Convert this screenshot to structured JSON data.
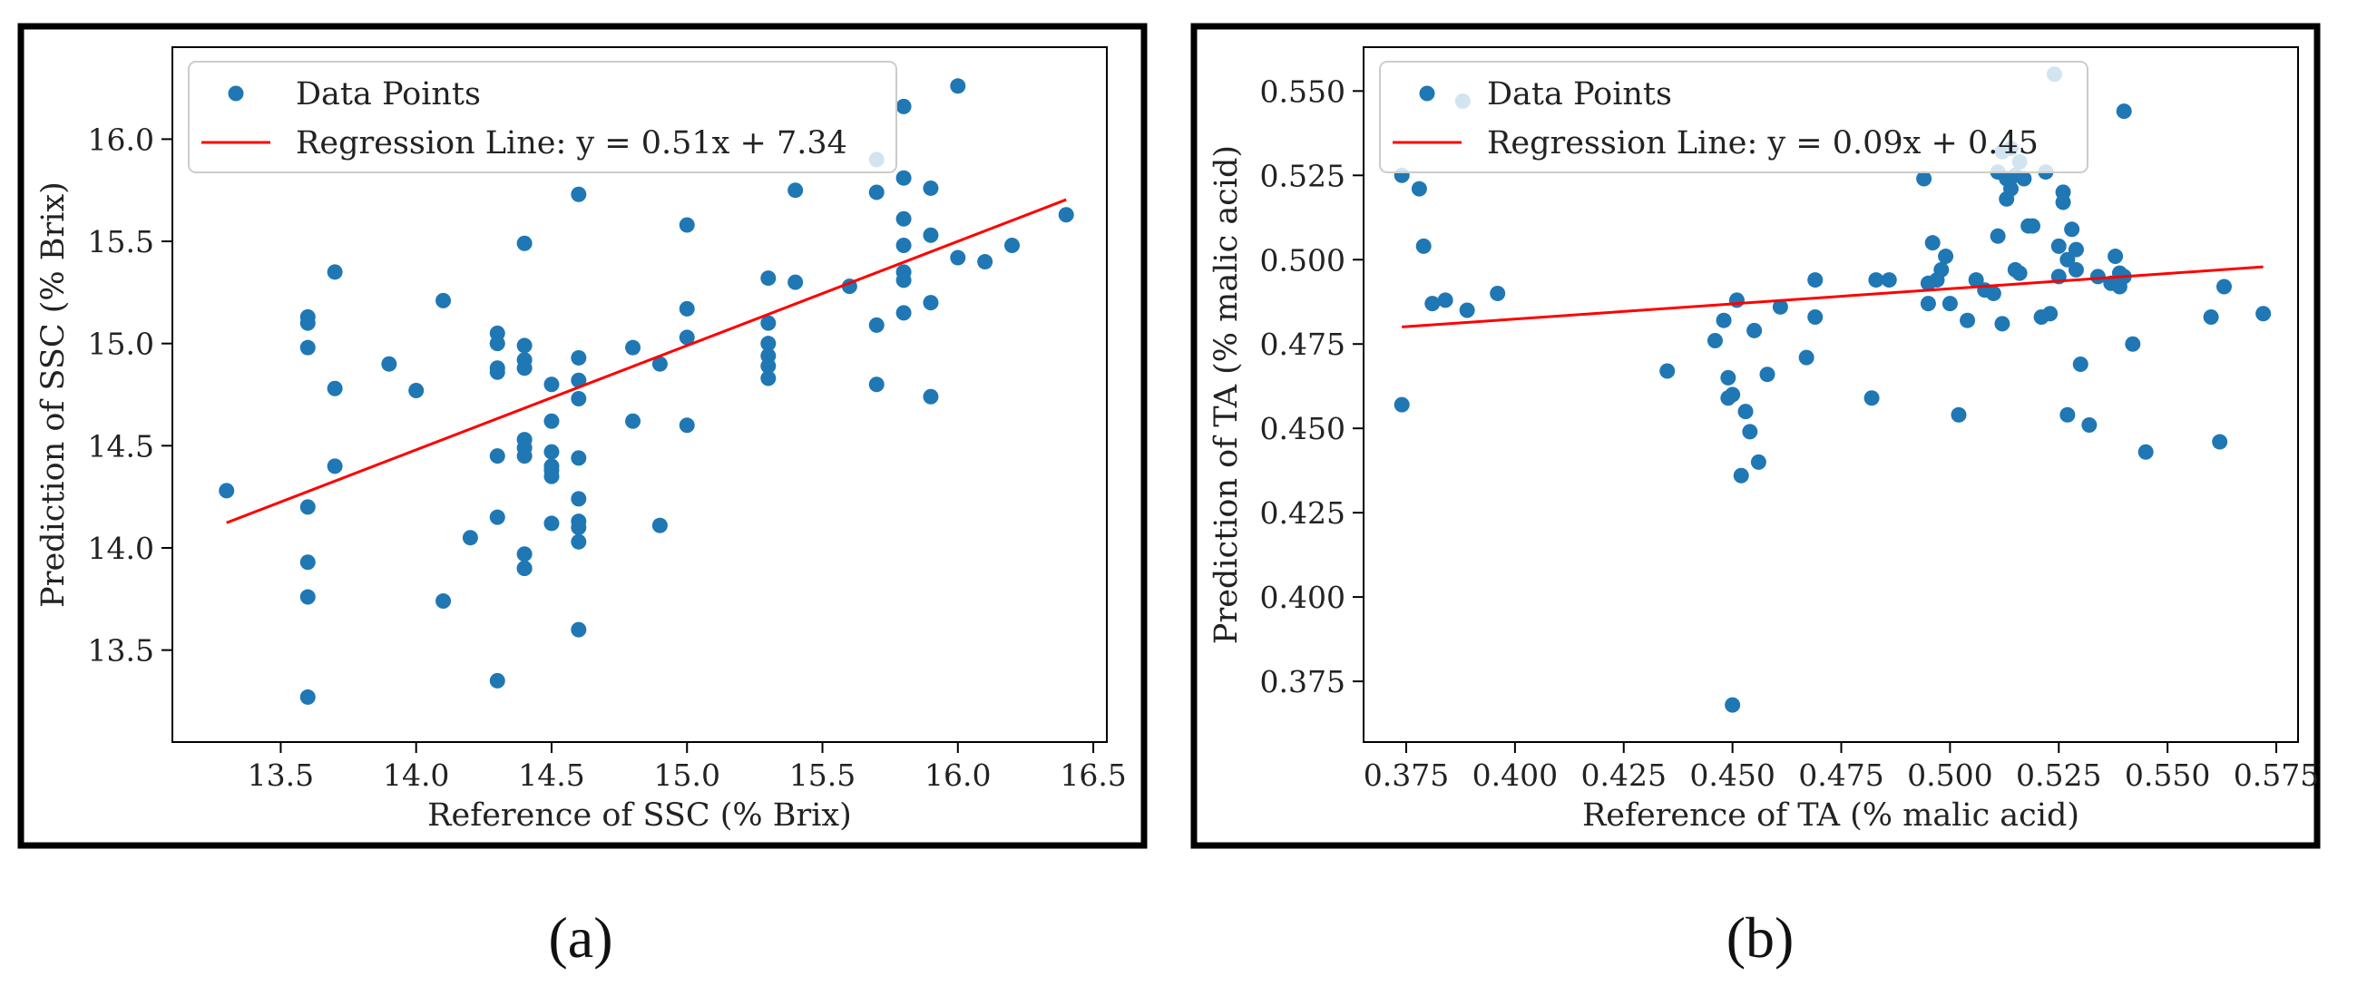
{
  "colors": {
    "points": "#1f77b4",
    "regression": "#ff0000",
    "frame": "#000000",
    "axes": "#000000"
  },
  "chart_data": [
    {
      "type": "scatter",
      "label": "(a)",
      "title": "",
      "xlabel": "Reference of SSC (% Brix)",
      "ylabel": "Prediction of SSC (% Brix)",
      "xlim": [
        13.1,
        16.55
      ],
      "ylim": [
        13.05,
        16.45
      ],
      "xticks": [
        13.5,
        14.0,
        14.5,
        15.0,
        15.5,
        16.0,
        16.5
      ],
      "yticks": [
        13.5,
        14.0,
        14.5,
        15.0,
        15.5,
        16.0
      ],
      "tick_decimals": 1,
      "legend": {
        "position": "top-left",
        "points_label": "Data Points",
        "line_label": "Regression Line: y = 0.51x + 7.34"
      },
      "regression": {
        "slope": 0.51,
        "intercept": 7.34,
        "x_range": [
          13.3,
          16.4
        ]
      },
      "series": [
        {
          "name": "Data Points",
          "x": [
            13.3,
            13.6,
            13.6,
            13.6,
            13.6,
            13.6,
            13.6,
            13.6,
            13.7,
            13.7,
            13.7,
            13.9,
            14.0,
            14.1,
            14.1,
            14.2,
            14.3,
            14.3,
            14.3,
            14.3,
            14.3,
            14.3,
            14.3,
            14.4,
            14.4,
            14.4,
            14.4,
            14.4,
            14.4,
            14.4,
            14.4,
            14.4,
            14.4,
            14.5,
            14.5,
            14.5,
            14.5,
            14.5,
            14.5,
            14.5,
            14.6,
            14.6,
            14.6,
            14.6,
            14.6,
            14.6,
            14.6,
            14.6,
            14.6,
            14.6,
            14.8,
            14.8,
            14.9,
            14.9,
            15.0,
            15.0,
            15.0,
            15.0,
            15.3,
            15.3,
            15.3,
            15.3,
            15.3,
            15.3,
            15.4,
            15.4,
            15.6,
            15.7,
            15.7,
            15.7,
            15.7,
            15.8,
            15.8,
            15.8,
            15.8,
            15.8,
            15.8,
            15.8,
            15.9,
            15.9,
            15.9,
            15.9,
            16.0,
            16.0,
            16.1,
            16.2,
            16.4
          ],
          "y": [
            14.28,
            15.13,
            15.1,
            14.98,
            14.2,
            13.93,
            13.76,
            13.27,
            15.35,
            14.78,
            14.4,
            14.9,
            14.77,
            15.21,
            13.74,
            14.05,
            15.05,
            15.0,
            14.88,
            14.86,
            14.45,
            14.15,
            13.35,
            15.49,
            14.99,
            14.92,
            14.88,
            14.53,
            14.49,
            14.45,
            13.97,
            13.9,
            13.9,
            14.8,
            14.62,
            14.47,
            14.4,
            14.38,
            14.35,
            14.12,
            15.73,
            14.93,
            14.82,
            14.73,
            14.44,
            14.24,
            14.13,
            14.1,
            14.03,
            13.6,
            14.98,
            14.62,
            14.9,
            14.11,
            15.58,
            15.17,
            15.03,
            14.6,
            15.32,
            15.1,
            15.0,
            14.94,
            14.89,
            14.83,
            15.75,
            15.3,
            15.28,
            15.9,
            15.74,
            15.09,
            14.8,
            16.16,
            15.81,
            15.61,
            15.48,
            15.35,
            15.31,
            15.15,
            15.76,
            15.53,
            15.2,
            14.74,
            16.26,
            15.42,
            15.4,
            15.48,
            15.63
          ]
        }
      ]
    },
    {
      "type": "scatter",
      "label": "(b)",
      "title": "",
      "xlabel": "Reference of TA (% malic acid)",
      "ylabel": "Prediction of TA (% malic acid)",
      "xlim": [
        0.3652,
        0.58
      ],
      "ylim": [
        0.357,
        0.563
      ],
      "xticks": [
        0.375,
        0.4,
        0.425,
        0.45,
        0.475,
        0.5,
        0.525,
        0.55,
        0.575
      ],
      "yticks": [
        0.375,
        0.4,
        0.425,
        0.45,
        0.475,
        0.5,
        0.525,
        0.55
      ],
      "tick_decimals": 3,
      "legend": {
        "position": "top-left",
        "points_label": "Data Points",
        "line_label": "Regression Line: y = 0.09x + 0.45"
      },
      "regression": {
        "slope": 0.09,
        "intercept": 0.4464,
        "x_range": [
          0.374,
          0.572
        ]
      },
      "series": [
        {
          "name": "Data Points",
          "x": [
            0.374,
            0.374,
            0.378,
            0.379,
            0.381,
            0.384,
            0.388,
            0.389,
            0.396,
            0.435,
            0.446,
            0.448,
            0.449,
            0.449,
            0.45,
            0.45,
            0.451,
            0.452,
            0.453,
            0.454,
            0.455,
            0.456,
            0.458,
            0.461,
            0.467,
            0.469,
            0.469,
            0.482,
            0.483,
            0.486,
            0.494,
            0.495,
            0.495,
            0.496,
            0.497,
            0.498,
            0.499,
            0.5,
            0.502,
            0.504,
            0.506,
            0.508,
            0.51,
            0.511,
            0.511,
            0.512,
            0.512,
            0.513,
            0.513,
            0.514,
            0.514,
            0.515,
            0.515,
            0.516,
            0.516,
            0.517,
            0.518,
            0.519,
            0.521,
            0.522,
            0.523,
            0.524,
            0.525,
            0.525,
            0.526,
            0.526,
            0.527,
            0.527,
            0.528,
            0.529,
            0.529,
            0.53,
            0.532,
            0.534,
            0.537,
            0.538,
            0.539,
            0.539,
            0.54,
            0.54,
            0.542,
            0.545,
            0.56,
            0.562,
            0.563,
            0.572
          ],
          "y": [
            0.525,
            0.457,
            0.521,
            0.504,
            0.487,
            0.488,
            0.547,
            0.485,
            0.49,
            0.467,
            0.476,
            0.482,
            0.465,
            0.459,
            0.368,
            0.46,
            0.488,
            0.436,
            0.455,
            0.449,
            0.479,
            0.44,
            0.466,
            0.486,
            0.471,
            0.483,
            0.494,
            0.459,
            0.494,
            0.494,
            0.524,
            0.487,
            0.493,
            0.505,
            0.494,
            0.497,
            0.501,
            0.487,
            0.454,
            0.482,
            0.494,
            0.491,
            0.49,
            0.526,
            0.507,
            0.532,
            0.481,
            0.518,
            0.524,
            0.533,
            0.521,
            0.525,
            0.497,
            0.529,
            0.496,
            0.524,
            0.51,
            0.51,
            0.483,
            0.526,
            0.484,
            0.555,
            0.495,
            0.504,
            0.52,
            0.517,
            0.5,
            0.454,
            0.509,
            0.503,
            0.497,
            0.469,
            0.451,
            0.495,
            0.493,
            0.501,
            0.496,
            0.492,
            0.544,
            0.495,
            0.475,
            0.443,
            0.483,
            0.446,
            0.492,
            0.484
          ]
        }
      ]
    }
  ]
}
